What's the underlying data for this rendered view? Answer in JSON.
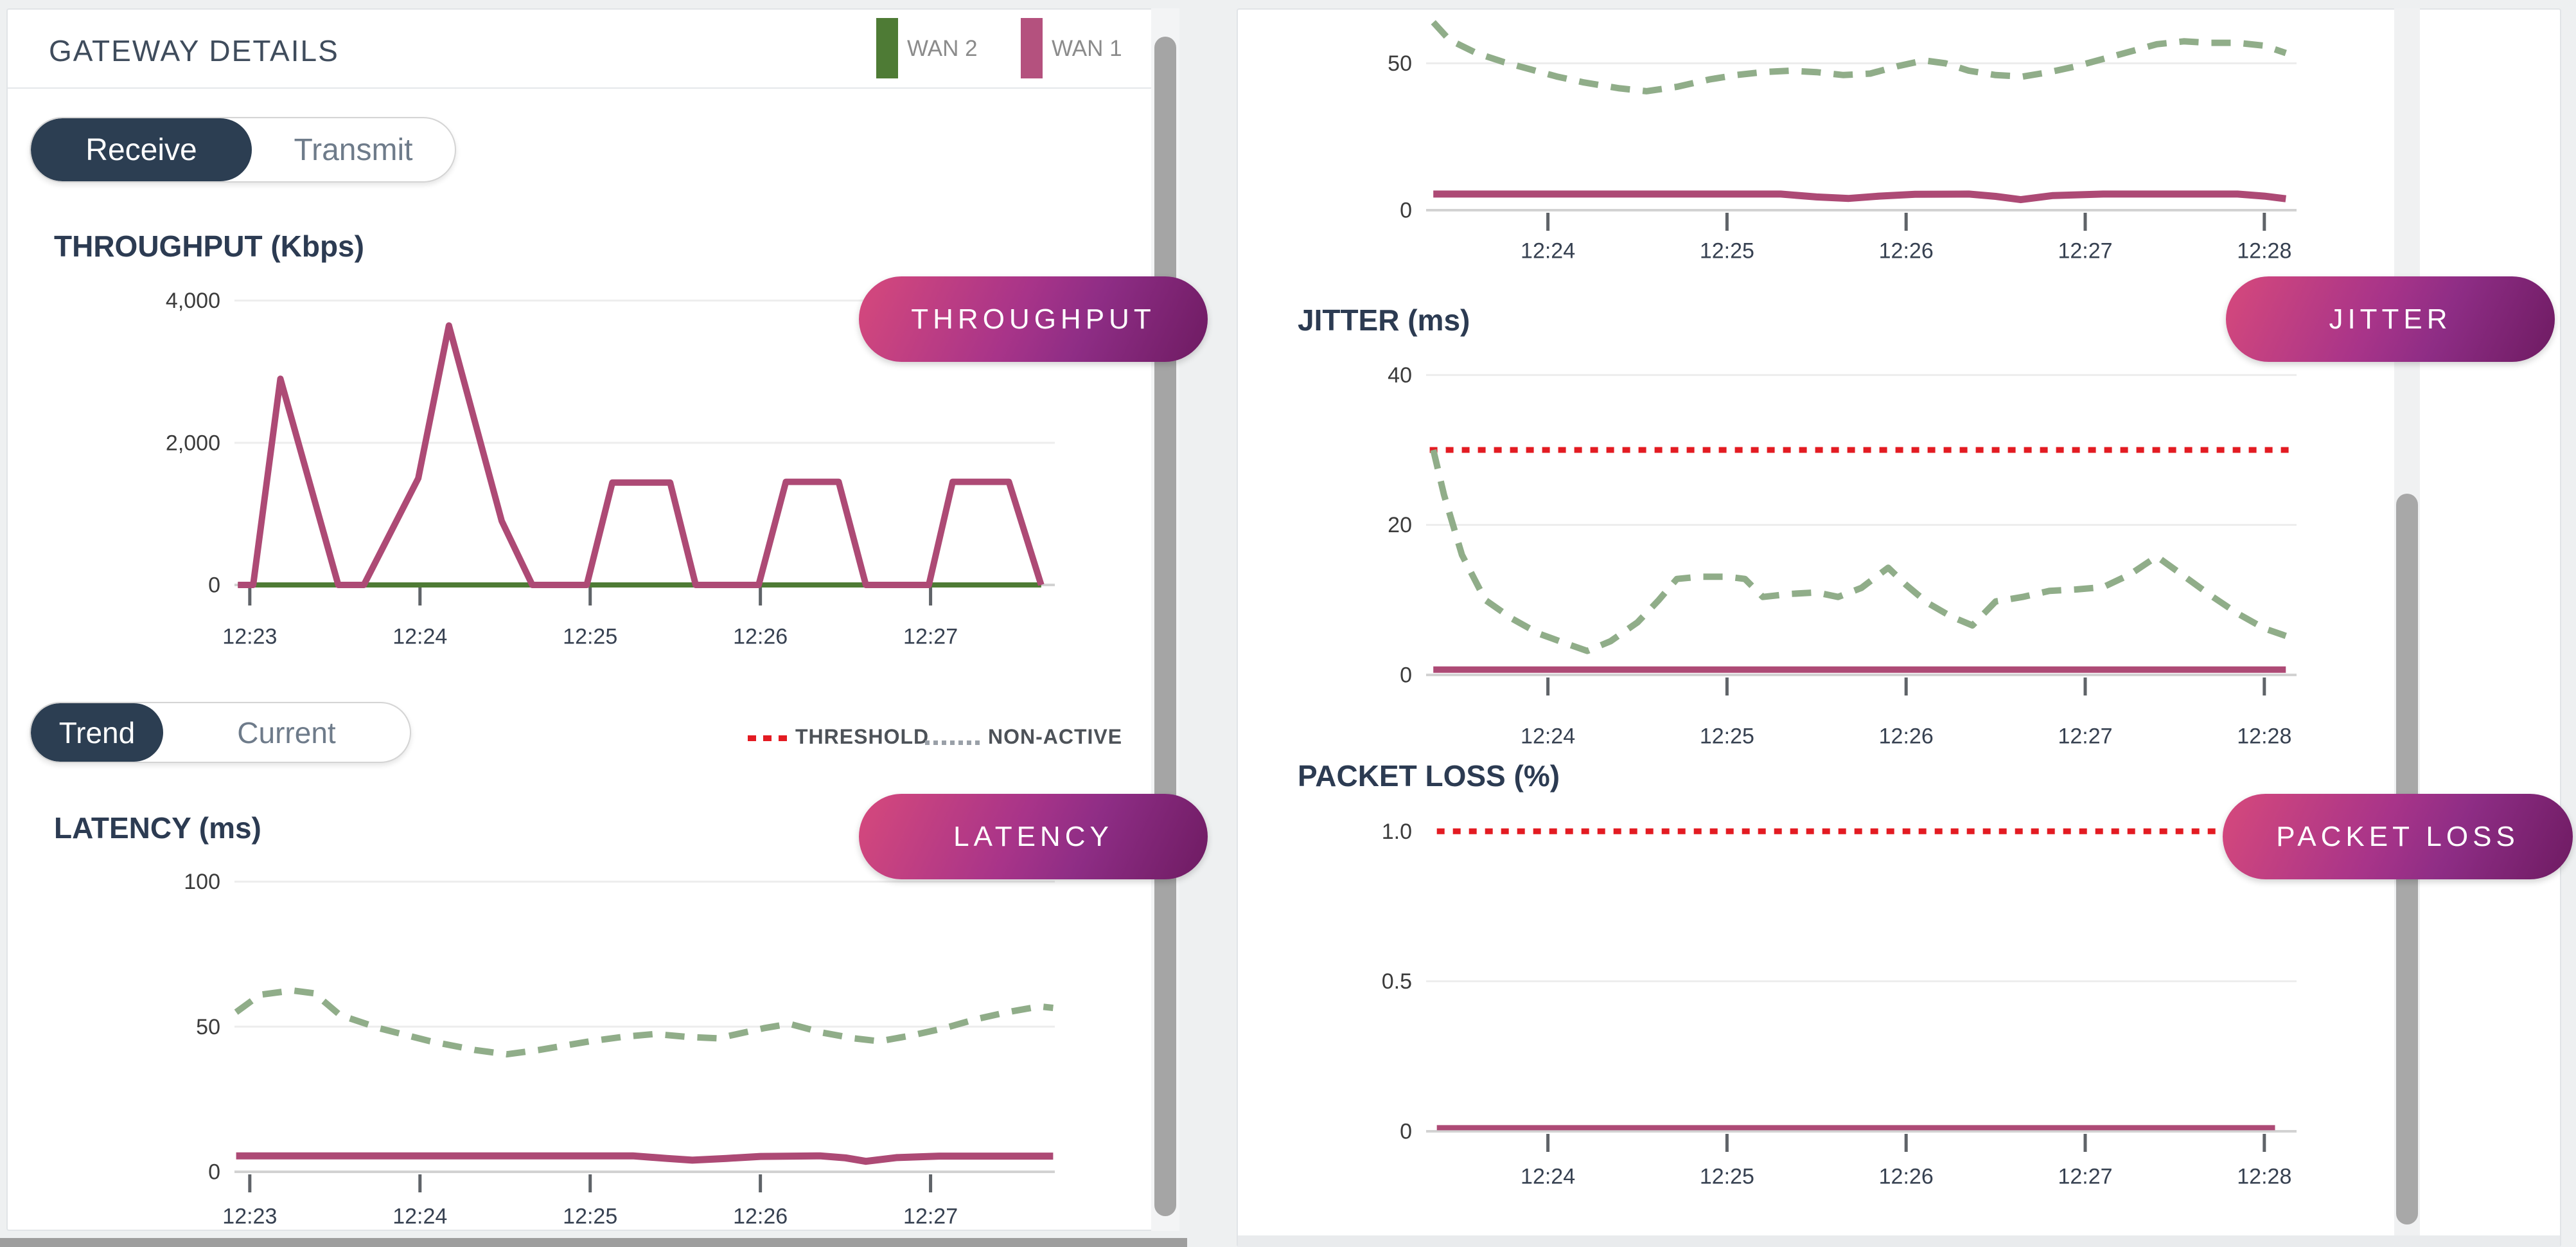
{
  "header": {
    "title": "GATEWAY DETAILS"
  },
  "wan_legend": [
    {
      "label": "WAN 2",
      "color": "#4e7b35"
    },
    {
      "label": "WAN 1",
      "color": "#b4517e"
    }
  ],
  "toggles": {
    "direction": {
      "active": "Receive",
      "inactive": "Transmit"
    },
    "mode": {
      "active": "Trend",
      "inactive": "Current"
    }
  },
  "line_legend": {
    "threshold_label": "THRESHOLD",
    "nonactive_label": "NON-ACTIVE",
    "threshold_color": "#e31b22",
    "nonactive_color": "#9aa0a8"
  },
  "badges": {
    "throughput": "THROUGHPUT",
    "latency": "LATENCY",
    "jitter": "JITTER",
    "packet_loss": "PACKET LOSS"
  },
  "colors": {
    "wan1": "#ad4a75",
    "wan2": "#4e7b35",
    "wan2_nonactive": "#90ad89",
    "threshold": "#e31b22",
    "toggle_active_bg": "#2c3e52",
    "badge_gradient_start": "#d6497c",
    "badge_gradient_end": "#6e1b62"
  },
  "chart_data": [
    {
      "id": "throughput",
      "type": "line",
      "title": "THROUGHPUT (Kbps)",
      "x_range": [
        22.91,
        27.73
      ],
      "y_range": [
        0,
        4250
      ],
      "grid": true,
      "legend_position": "top-right",
      "y_ticks": [
        {
          "v": 0,
          "label": "0"
        },
        {
          "v": 2000,
          "label": "2,000"
        },
        {
          "v": 4000,
          "label": "4,000"
        }
      ],
      "x_ticks": [
        {
          "t": 23,
          "label": "12:23"
        },
        {
          "t": 24,
          "label": "12:24"
        },
        {
          "t": 25,
          "label": "12:25"
        },
        {
          "t": 26,
          "label": "12:26"
        },
        {
          "t": 27,
          "label": "12:27"
        }
      ],
      "series": [
        {
          "name": "WAN 2",
          "color": "#4e7b35",
          "style": "solid",
          "width": 8,
          "points": [
            [
              22.93,
              0
            ],
            [
              27.65,
              0
            ]
          ]
        },
        {
          "name": "WAN 1",
          "color": "#ad4a75",
          "style": "solid",
          "width": 10,
          "points": [
            [
              22.93,
              0
            ],
            [
              23.02,
              0
            ],
            [
              23.18,
              2900
            ],
            [
              23.52,
              0
            ],
            [
              23.67,
              0
            ],
            [
              23.99,
              1500
            ],
            [
              24.17,
              3650
            ],
            [
              24.48,
              900
            ],
            [
              24.66,
              0
            ],
            [
              24.98,
              0
            ],
            [
              25.13,
              1440
            ],
            [
              25.47,
              1440
            ],
            [
              25.62,
              0
            ],
            [
              25.99,
              0
            ],
            [
              26.15,
              1450
            ],
            [
              26.46,
              1450
            ],
            [
              26.62,
              0
            ],
            [
              26.99,
              0
            ],
            [
              27.13,
              1450
            ],
            [
              27.46,
              1450
            ],
            [
              27.65,
              0
            ]
          ]
        }
      ]
    },
    {
      "id": "latency",
      "type": "line",
      "title": "LATENCY (ms)",
      "x_range": [
        22.91,
        27.73
      ],
      "y_range": [
        0,
        107
      ],
      "grid": true,
      "y_ticks": [
        {
          "v": 0,
          "label": "0"
        },
        {
          "v": 50,
          "label": "50"
        },
        {
          "v": 100,
          "label": "100"
        }
      ],
      "x_ticks": [
        {
          "t": 23,
          "label": "12:23"
        },
        {
          "t": 24,
          "label": "12:24"
        },
        {
          "t": 25,
          "label": "12:25"
        },
        {
          "t": 26,
          "label": "12:26"
        },
        {
          "t": 27,
          "label": "12:27"
        }
      ],
      "series": [
        {
          "name": "WAN 2 (non-active)",
          "color": "#90ad89",
          "style": "dashed",
          "width": 10,
          "points": [
            [
              22.92,
              55
            ],
            [
              23.06,
              61
            ],
            [
              23.25,
              62.5
            ],
            [
              23.38,
              61.5
            ],
            [
              23.53,
              54
            ],
            [
              23.76,
              49.5
            ],
            [
              24.06,
              45
            ],
            [
              24.32,
              42
            ],
            [
              24.51,
              40.5
            ],
            [
              24.7,
              42
            ],
            [
              25.0,
              45
            ],
            [
              25.19,
              46.5
            ],
            [
              25.38,
              47.5
            ],
            [
              25.57,
              46.5
            ],
            [
              25.75,
              46
            ],
            [
              26.02,
              49.5
            ],
            [
              26.17,
              51
            ],
            [
              26.36,
              48
            ],
            [
              26.55,
              46
            ],
            [
              26.7,
              45
            ],
            [
              26.89,
              47
            ],
            [
              27.08,
              49.5
            ],
            [
              27.26,
              52.5
            ],
            [
              27.45,
              55
            ],
            [
              27.64,
              57
            ],
            [
              27.72,
              56.5
            ]
          ]
        },
        {
          "name": "WAN 1",
          "color": "#ad4a75",
          "style": "solid",
          "width": 11,
          "points": [
            [
              22.92,
              5.5
            ],
            [
              25.25,
              5.5
            ],
            [
              25.45,
              4.6
            ],
            [
              25.6,
              4.0
            ],
            [
              25.8,
              4.6
            ],
            [
              26.0,
              5.3
            ],
            [
              26.35,
              5.5
            ],
            [
              26.5,
              4.8
            ],
            [
              26.62,
              3.6
            ],
            [
              26.8,
              4.9
            ],
            [
              27.05,
              5.4
            ],
            [
              27.72,
              5.4
            ]
          ]
        }
      ]
    },
    {
      "id": "latency_overflow",
      "type": "line",
      "title": "",
      "x_range": [
        23.32,
        28.18
      ],
      "y_range": [
        0,
        65
      ],
      "grid": true,
      "y_ticks": [
        {
          "v": 0,
          "label": "0"
        },
        {
          "v": 50,
          "label": "50"
        }
      ],
      "x_ticks": [
        {
          "t": 24,
          "label": "12:24"
        },
        {
          "t": 25,
          "label": "12:25"
        },
        {
          "t": 26,
          "label": "12:26"
        },
        {
          "t": 27,
          "label": "12:27"
        },
        {
          "t": 28,
          "label": "12:28"
        }
      ],
      "series": [
        {
          "name": "WAN 2 (non-active)",
          "color": "#90ad89",
          "style": "dashed",
          "width": 10,
          "points": [
            [
              23.36,
              64
            ],
            [
              23.45,
              58
            ],
            [
              23.6,
              53.5
            ],
            [
              23.75,
              50.5
            ],
            [
              23.9,
              48
            ],
            [
              24.05,
              45.5
            ],
            [
              24.2,
              43.5
            ],
            [
              24.4,
              41.5
            ],
            [
              24.55,
              40.5
            ],
            [
              24.72,
              42
            ],
            [
              24.9,
              44.5
            ],
            [
              25.05,
              46
            ],
            [
              25.2,
              47
            ],
            [
              25.35,
              47.5
            ],
            [
              25.5,
              47
            ],
            [
              25.65,
              46
            ],
            [
              25.8,
              46.5
            ],
            [
              25.95,
              49
            ],
            [
              26.1,
              51
            ],
            [
              26.22,
              50
            ],
            [
              26.35,
              47.5
            ],
            [
              26.5,
              46
            ],
            [
              26.65,
              45.5
            ],
            [
              26.8,
              47
            ],
            [
              26.95,
              49
            ],
            [
              27.1,
              51.5
            ],
            [
              27.25,
              54
            ],
            [
              27.4,
              56.5
            ],
            [
              27.55,
              57.5
            ],
            [
              27.7,
              57
            ],
            [
              27.85,
              57
            ],
            [
              28.0,
              56
            ],
            [
              28.12,
              53.5
            ]
          ]
        },
        {
          "name": "WAN 1",
          "color": "#ad4a75",
          "style": "solid",
          "width": 11,
          "points": [
            [
              23.36,
              5.5
            ],
            [
              25.3,
              5.5
            ],
            [
              25.5,
              4.5
            ],
            [
              25.68,
              4.0
            ],
            [
              25.85,
              4.8
            ],
            [
              26.05,
              5.4
            ],
            [
              26.35,
              5.5
            ],
            [
              26.5,
              4.7
            ],
            [
              26.64,
              3.6
            ],
            [
              26.82,
              5.0
            ],
            [
              27.1,
              5.5
            ],
            [
              27.85,
              5.5
            ],
            [
              28.0,
              4.8
            ],
            [
              28.12,
              3.9
            ]
          ]
        }
      ]
    },
    {
      "id": "jitter",
      "type": "line",
      "title": "JITTER (ms)",
      "threshold": 30,
      "x_range": [
        23.32,
        28.18
      ],
      "y_range": [
        0,
        42
      ],
      "grid": true,
      "y_ticks": [
        {
          "v": 0,
          "label": "0"
        },
        {
          "v": 20,
          "label": "20"
        },
        {
          "v": 40,
          "label": "40"
        }
      ],
      "x_ticks": [
        {
          "t": 24,
          "label": "12:24"
        },
        {
          "t": 25,
          "label": "12:25"
        },
        {
          "t": 26,
          "label": "12:26"
        },
        {
          "t": 27,
          "label": "12:27"
        },
        {
          "t": 28,
          "label": "12:28"
        }
      ],
      "series": [
        {
          "name": "THRESHOLD",
          "color": "#e31b22",
          "style": "dotted",
          "width": 9,
          "points": [
            [
              23.34,
              30
            ],
            [
              28.16,
              30
            ]
          ]
        },
        {
          "name": "WAN 2 (non-active)",
          "color": "#90ad89",
          "style": "dashed",
          "width": 10,
          "points": [
            [
              23.36,
              30
            ],
            [
              23.42,
              24
            ],
            [
              23.52,
              16
            ],
            [
              23.65,
              10
            ],
            [
              23.8,
              7.5
            ],
            [
              23.95,
              5.5
            ],
            [
              24.1,
              4.2
            ],
            [
              24.22,
              3.2
            ],
            [
              24.35,
              4.5
            ],
            [
              24.5,
              7
            ],
            [
              24.62,
              10
            ],
            [
              24.72,
              12.8
            ],
            [
              24.85,
              13.1
            ],
            [
              25.0,
              13.1
            ],
            [
              25.1,
              12.8
            ],
            [
              25.2,
              10.4
            ],
            [
              25.35,
              10.8
            ],
            [
              25.5,
              11
            ],
            [
              25.62,
              10.4
            ],
            [
              25.75,
              11.6
            ],
            [
              25.9,
              14.3
            ],
            [
              26.0,
              12
            ],
            [
              26.12,
              9.6
            ],
            [
              26.25,
              7.8
            ],
            [
              26.37,
              6.6
            ],
            [
              26.5,
              9.8
            ],
            [
              26.65,
              10.4
            ],
            [
              26.8,
              11.2
            ],
            [
              26.95,
              11.4
            ],
            [
              27.1,
              11.7
            ],
            [
              27.25,
              13.4
            ],
            [
              27.4,
              15.8
            ],
            [
              27.55,
              13.2
            ],
            [
              27.7,
              10.6
            ],
            [
              27.85,
              8.2
            ],
            [
              28.0,
              6.2
            ],
            [
              28.12,
              5.2
            ]
          ]
        },
        {
          "name": "WAN 1",
          "color": "#ad4a75",
          "style": "solid",
          "width": 10,
          "points": [
            [
              23.36,
              0.7
            ],
            [
              28.12,
              0.7
            ]
          ]
        }
      ]
    },
    {
      "id": "packet_loss",
      "type": "line",
      "title": "PACKET LOSS (%)",
      "threshold": 1.0,
      "x_range": [
        23.32,
        28.18
      ],
      "y_range": [
        0,
        1.05
      ],
      "grid": true,
      "y_ticks": [
        {
          "v": 0,
          "label": "0"
        },
        {
          "v": 0.5,
          "label": "0.5"
        },
        {
          "v": 1.0,
          "label": "1.0",
          "grid": false
        }
      ],
      "x_ticks": [
        {
          "t": 24,
          "label": "12:24"
        },
        {
          "t": 25,
          "label": "12:25"
        },
        {
          "t": 26,
          "label": "12:26"
        },
        {
          "t": 27,
          "label": "12:27"
        },
        {
          "t": 28,
          "label": "12:28"
        }
      ],
      "series": [
        {
          "name": "THRESHOLD",
          "color": "#e31b22",
          "style": "dotted",
          "width": 9,
          "points": [
            [
              23.38,
              1.0
            ],
            [
              28.11,
              1.0
            ]
          ]
        },
        {
          "name": "WAN 1",
          "color": "#ad4a75",
          "style": "solid",
          "width": 8,
          "points": [
            [
              23.38,
              0.012
            ],
            [
              28.06,
              0.012
            ]
          ]
        }
      ]
    }
  ]
}
